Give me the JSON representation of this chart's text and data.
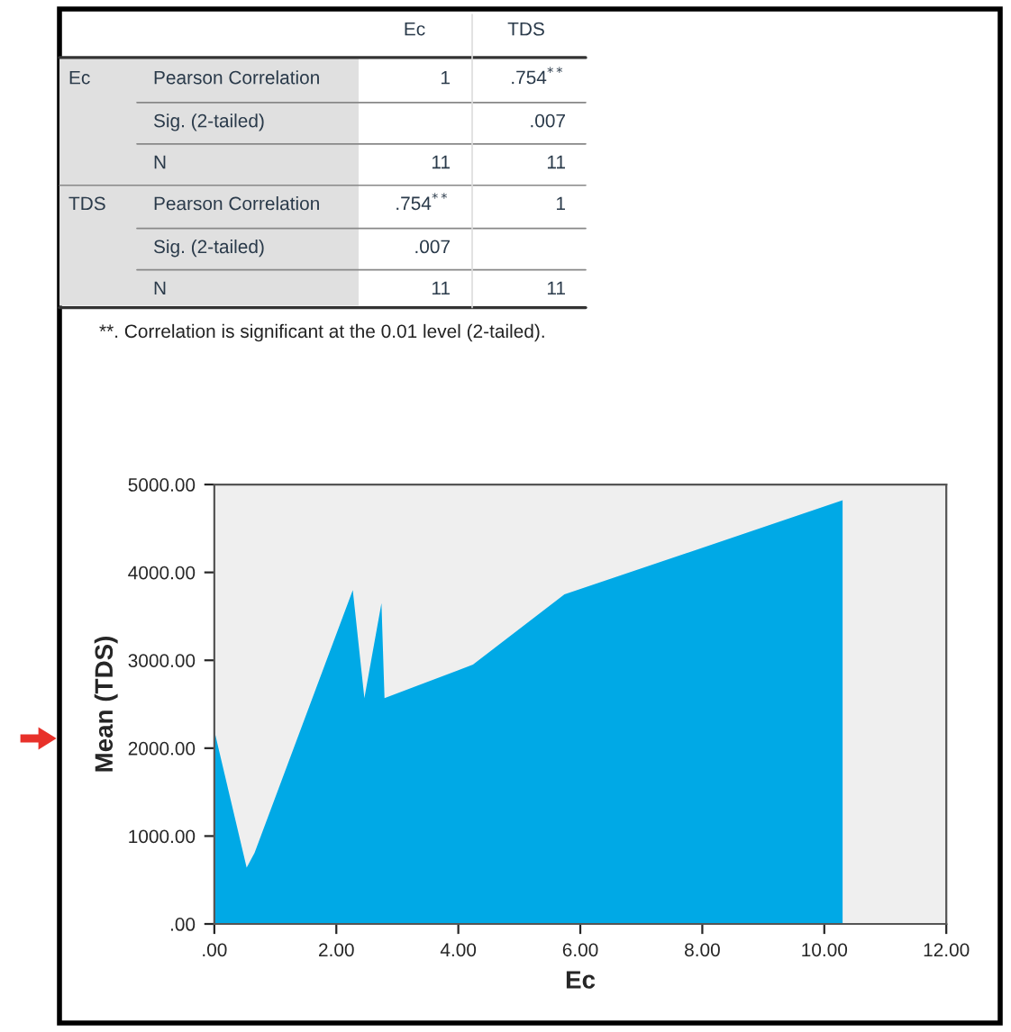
{
  "chart_data": [
    {
      "type": "other",
      "annotations": [
        "Ec",
        "TDS",
        "Ec",
        "Pearson Correlation",
        "1",
        ".754$^{**}$",
        "Sig. (2-tailed)",
        ".007",
        "N",
        "11",
        "11",
        "TDS",
        "Pearson Correlation",
        ".754$^{**}$",
        "1",
        "Sig. (2-tailed)",
        ".007",
        "N",
        "11",
        "11",
        "**. Correlation is significant at the 0.01 level (2-tailed)."
      ]
    },
    {
      "type": "area",
      "xlabel": "Ec",
      "ylabel": "Mean (TDS)",
      "series": [
        {
          "color": "#00a9e6",
          "x": [
            0,
            0.53,
            0.66,
            2.27,
            2.46,
            2.74,
            2.79,
            4.24,
            5.74,
            10.3
          ],
          "values": [
            2200,
            640,
            810,
            3800,
            2570,
            3650,
            2570,
            2950,
            3750,
            4820
          ]
        }
      ],
      "xlim": [
        0,
        12
      ],
      "xticks": [
        {
          "value": 0,
          "label": ".00"
        },
        {
          "value": 2,
          "label": "2.00"
        },
        {
          "value": 4,
          "label": "4.00"
        },
        {
          "value": 6,
          "label": "6.00"
        },
        {
          "value": 8,
          "label": "8.00"
        },
        {
          "value": 10,
          "label": "10.00"
        },
        {
          "value": 12,
          "label": "12.00"
        }
      ],
      "ylim": [
        0,
        5000
      ],
      "yticks": [
        {
          "value": 0,
          "label": ".00"
        },
        {
          "value": 1000,
          "label": "1000.00"
        },
        {
          "value": 2000,
          "label": "2000.00"
        },
        {
          "value": 3000,
          "label": "3000.00"
        },
        {
          "value": 4000,
          "label": "4000.00"
        },
        {
          "value": 5000,
          "label": "5000.00"
        }
      ],
      "grid": false
    }
  ]
}
